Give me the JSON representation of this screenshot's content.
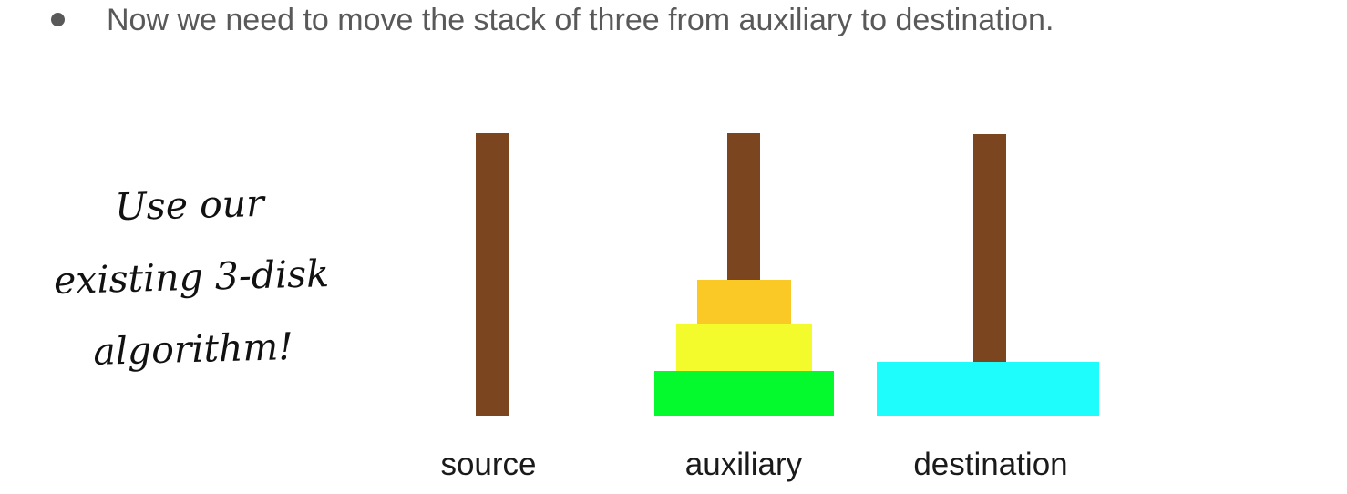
{
  "bullet": {
    "text": "Now we need to move the stack of three from auxiliary to destination."
  },
  "note": {
    "lines": [
      "Use our",
      "existing 3-disk",
      "algorithm!"
    ]
  },
  "towers": [
    {
      "label": "source",
      "disks": []
    },
    {
      "label": "auxiliary",
      "disks": [
        "green",
        "yellow",
        "orange"
      ]
    },
    {
      "label": "destination",
      "disks": [
        "cyan"
      ]
    }
  ],
  "colors": {
    "peg": "#7a451f",
    "green": "#05fa2d",
    "yellow": "#f4fb2c",
    "orange": "#fbc926",
    "cyan": "#1ffcfc",
    "text": "#595959"
  }
}
